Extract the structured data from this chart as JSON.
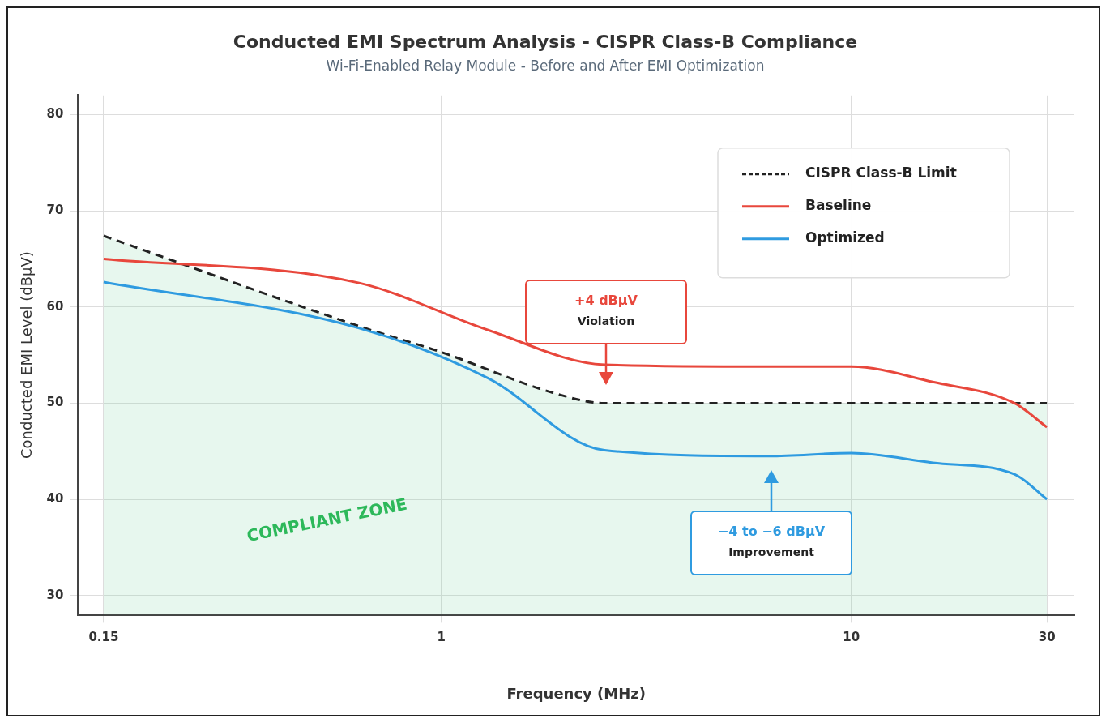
{
  "chart_data": {
    "type": "line",
    "title": "Conducted EMI Spectrum Analysis - CISPR Class-B Compliance",
    "subtitle": "Wi-Fi-Enabled Relay Module - Before and After EMI Optimization",
    "xlabel": "Frequency (MHz)",
    "ylabel": "Conducted EMI Level (dBμV)",
    "log": "x",
    "xlim": [
      0.13,
      35
    ],
    "xticks": [
      0.15,
      1,
      10,
      30
    ],
    "ylim": [
      28,
      82
    ],
    "yticks": [
      30,
      40,
      50,
      60,
      70,
      80
    ],
    "grid": true,
    "legend": "top right",
    "marker": "none",
    "series": [
      {
        "name": "CISPR Class-B Limit",
        "type": "area",
        "color": "#222222",
        "line_style": "dashed",
        "x": [
          0.15,
          0.63,
          1,
          1.9,
          2.5,
          30
        ],
        "values": [
          67.4,
          58,
          55.3,
          51,
          50,
          50
        ]
      },
      {
        "name": "Baseline",
        "color": "#e8473c",
        "line_style": "solid",
        "x": [
          0.15,
          0.63,
          1.3,
          2.5,
          6.3,
          10,
          15.8,
          25,
          30
        ],
        "values": [
          65,
          62.5,
          57.6,
          54,
          53.8,
          53.8,
          52.2,
          50,
          47.5
        ]
      },
      {
        "name": "Optimized",
        "color": "#2f9be0",
        "line_style": "solid",
        "x": [
          0.15,
          0.63,
          1.3,
          2.5,
          6.3,
          10,
          15.8,
          25,
          30
        ],
        "values": [
          62.6,
          57.8,
          52.6,
          45.1,
          44.5,
          44.8,
          43.8,
          42.6,
          40
        ]
      }
    ],
    "annotations": [
      "+4 dBμV\nViolation",
      "−4 to −6 dBμV\nImprovement",
      "COMPLIANT ZONE"
    ]
  }
}
